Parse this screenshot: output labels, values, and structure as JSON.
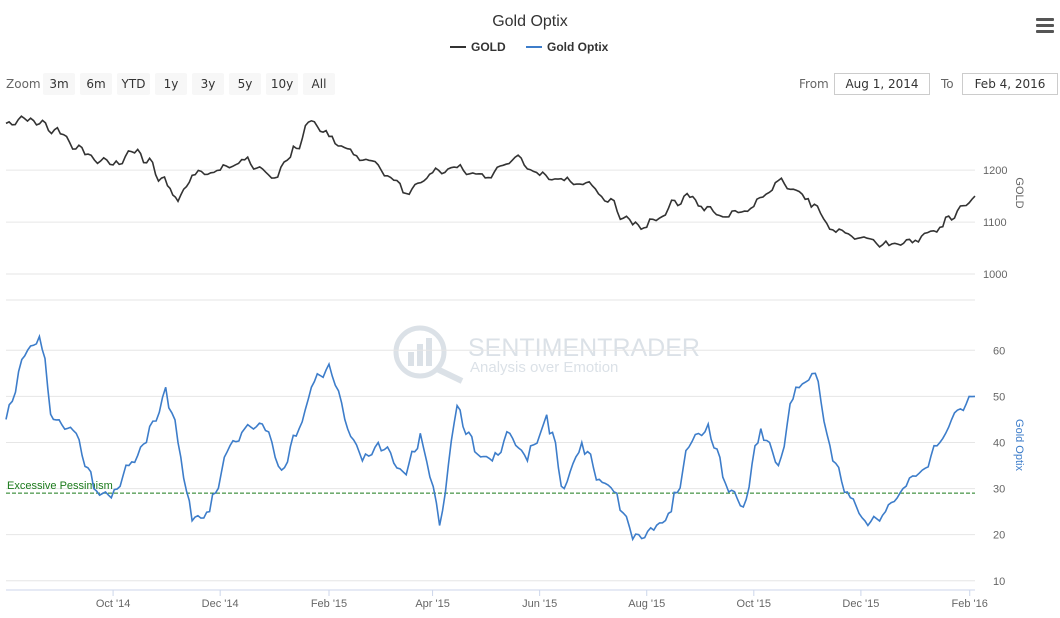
{
  "title": "Gold Optix",
  "menu_icon": "hamburger-menu-icon",
  "legend": [
    {
      "name": "GOLD",
      "color": "#333333"
    },
    {
      "name": "Gold Optix",
      "color": "#3d7dca"
    }
  ],
  "zoom": {
    "label": "Zoom",
    "buttons": [
      "3m",
      "6m",
      "YTD",
      "1y",
      "3y",
      "5y",
      "10y",
      "All"
    ]
  },
  "range": {
    "from_label": "From",
    "from_value": "Aug 1, 2014",
    "to_label": "To",
    "to_value": "Feb 4, 2016"
  },
  "watermark": {
    "brand": "SENTIMENTRADER",
    "tagline": "Analysis over Emotion"
  },
  "chart_data": [
    {
      "type": "line",
      "panel": "top",
      "ylabel": "GOLD",
      "ylim": [
        950,
        1310
      ],
      "yticks": [
        1000,
        1100,
        1200
      ],
      "xlim": [
        "2014-08-01",
        "2016-02-04"
      ],
      "series": [
        {
          "name": "GOLD",
          "color": "#333333",
          "x": [
            "2014-08-01",
            "2014-08-15",
            "2014-09-01",
            "2014-09-15",
            "2014-10-01",
            "2014-10-15",
            "2014-11-01",
            "2014-11-07",
            "2014-11-15",
            "2014-12-01",
            "2014-12-15",
            "2015-01-01",
            "2015-01-10",
            "2015-01-22",
            "2015-02-01",
            "2015-02-15",
            "2015-03-01",
            "2015-03-17",
            "2015-04-01",
            "2015-04-15",
            "2015-05-01",
            "2015-05-18",
            "2015-06-01",
            "2015-06-15",
            "2015-07-01",
            "2015-07-24",
            "2015-08-01",
            "2015-08-24",
            "2015-09-01",
            "2015-09-15",
            "2015-10-01",
            "2015-10-15",
            "2015-11-01",
            "2015-11-15",
            "2015-12-01",
            "2015-12-17",
            "2016-01-01",
            "2016-01-15",
            "2016-02-04"
          ],
          "values": [
            1290,
            1300,
            1270,
            1230,
            1210,
            1240,
            1170,
            1140,
            1190,
            1200,
            1220,
            1185,
            1225,
            1295,
            1265,
            1230,
            1210,
            1155,
            1195,
            1205,
            1185,
            1225,
            1190,
            1180,
            1170,
            1095,
            1090,
            1155,
            1130,
            1110,
            1130,
            1180,
            1145,
            1085,
            1070,
            1055,
            1065,
            1090,
            1150
          ]
        }
      ]
    },
    {
      "type": "line",
      "panel": "bottom",
      "ylabel": "Gold Optix",
      "ylim": [
        8,
        67
      ],
      "yticks": [
        10,
        20,
        30,
        40,
        50,
        60
      ],
      "xticks": [
        "Oct '14",
        "Dec '14",
        "Feb '15",
        "Apr '15",
        "Jun '15",
        "Aug '15",
        "Oct '15",
        "Dec '15",
        "Feb '16"
      ],
      "xtick_dates": [
        "2014-10-01",
        "2014-12-01",
        "2015-02-01",
        "2015-04-01",
        "2015-06-01",
        "2015-08-01",
        "2015-10-01",
        "2015-12-01",
        "2016-02-01"
      ],
      "reference_line": {
        "label": "Excessive Pessimism",
        "value": 29,
        "color": "#1a7a1a"
      },
      "series": [
        {
          "name": "Gold Optix",
          "color": "#3d7dca",
          "x": [
            "2014-08-01",
            "2014-08-10",
            "2014-08-20",
            "2014-08-28",
            "2014-09-10",
            "2014-09-20",
            "2014-09-30",
            "2014-10-10",
            "2014-10-20",
            "2014-10-31",
            "2014-11-07",
            "2014-11-15",
            "2014-11-25",
            "2014-12-05",
            "2014-12-15",
            "2014-12-25",
            "2015-01-05",
            "2015-01-15",
            "2015-01-22",
            "2015-02-01",
            "2015-02-10",
            "2015-02-20",
            "2015-03-01",
            "2015-03-17",
            "2015-03-25",
            "2015-04-05",
            "2015-04-15",
            "2015-04-25",
            "2015-05-05",
            "2015-05-15",
            "2015-05-25",
            "2015-06-05",
            "2015-06-15",
            "2015-06-25",
            "2015-07-05",
            "2015-07-15",
            "2015-07-24",
            "2015-08-05",
            "2015-08-15",
            "2015-08-25",
            "2015-09-05",
            "2015-09-15",
            "2015-09-25",
            "2015-10-05",
            "2015-10-15",
            "2015-10-25",
            "2015-11-05",
            "2015-11-15",
            "2015-11-25",
            "2015-12-05",
            "2015-12-15",
            "2015-12-25",
            "2016-01-05",
            "2016-01-15",
            "2016-01-25",
            "2016-02-04"
          ],
          "values": [
            45,
            58,
            63,
            45,
            42,
            30,
            28,
            35,
            40,
            52,
            40,
            23,
            25,
            38,
            43,
            44,
            34,
            43,
            52,
            57,
            45,
            36,
            40,
            33,
            42,
            22,
            48,
            38,
            36,
            42,
            36,
            46,
            30,
            40,
            32,
            29,
            19,
            21,
            25,
            39,
            44,
            31,
            26,
            43,
            35,
            52,
            55,
            36,
            28,
            22,
            25,
            30,
            34,
            40,
            47,
            50
          ]
        }
      ]
    }
  ]
}
